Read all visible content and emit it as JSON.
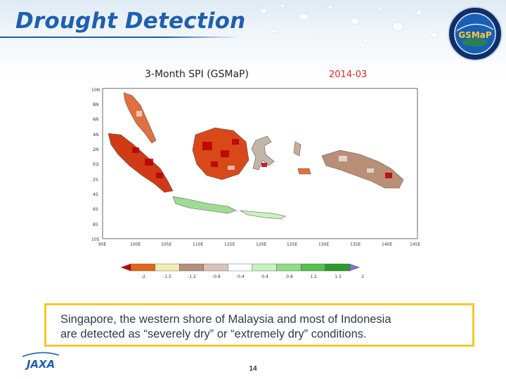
{
  "slide": {
    "title": "Drought Detection",
    "caption_lines": [
      "Singapore, the western shore of Malaysia and most of Indonesia",
      "are detected as “severely dry” or “extremely dry” conditions."
    ],
    "page_number": "14",
    "title_color": "#1f5fb0",
    "caption_border_color": "#f0cb2a"
  },
  "map": {
    "title": "3-Month SPI (GSMaP)",
    "date": "2014-03",
    "lat_labels": [
      "10N",
      "8N",
      "6N",
      "4N",
      "2N",
      "EQ",
      "2S",
      "4S",
      "6S",
      "8S",
      "10S"
    ],
    "lon_labels": [
      "95E",
      "100E",
      "105E",
      "110E",
      "115E",
      "120E",
      "125E",
      "130E",
      "135E",
      "140E",
      "145E"
    ]
  },
  "colorbar": {
    "labels": [
      "-2",
      "-1.5",
      "-1.2",
      "-0.8",
      "-0.4",
      "0.4",
      "0.8",
      "1.2",
      "1.5",
      "2"
    ],
    "colors": [
      "#c40000",
      "#e0661a",
      "#f2ecb0",
      "#b2917c",
      "#d8c3b6",
      "#ffffff",
      "#c8f2bf",
      "#8edc83",
      "#52c24d",
      "#2b9c2b",
      "#7a73d8"
    ]
  },
  "logos": {
    "gsmap_text": "GSMaP",
    "jaxa_text": "JAXA"
  }
}
